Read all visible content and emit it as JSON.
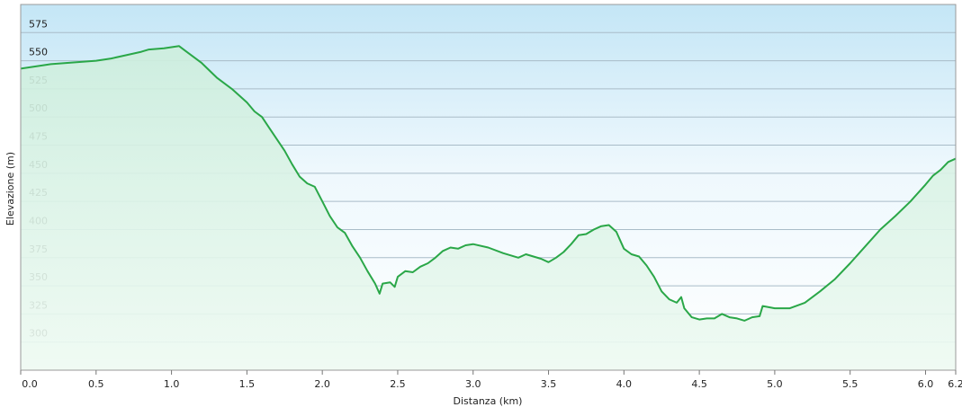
{
  "chart_data": {
    "type": "area",
    "x_label": "Distanza  (km)",
    "y_label": "Elevazione (m)",
    "x": [
      0.0,
      0.1,
      0.2,
      0.3,
      0.4,
      0.5,
      0.6,
      0.7,
      0.8,
      0.85,
      0.95,
      1.05,
      1.1,
      1.2,
      1.3,
      1.4,
      1.5,
      1.55,
      1.6,
      1.65,
      1.7,
      1.75,
      1.8,
      1.85,
      1.9,
      1.95,
      2.0,
      2.05,
      2.1,
      2.15,
      2.2,
      2.25,
      2.3,
      2.35,
      2.38,
      2.4,
      2.45,
      2.48,
      2.5,
      2.55,
      2.6,
      2.65,
      2.7,
      2.75,
      2.8,
      2.85,
      2.9,
      2.95,
      3.0,
      3.1,
      3.2,
      3.3,
      3.35,
      3.4,
      3.45,
      3.5,
      3.55,
      3.6,
      3.65,
      3.7,
      3.75,
      3.8,
      3.85,
      3.9,
      3.95,
      4.0,
      4.05,
      4.1,
      4.15,
      4.2,
      4.25,
      4.3,
      4.35,
      4.38,
      4.4,
      4.45,
      4.5,
      4.55,
      4.6,
      4.65,
      4.7,
      4.75,
      4.8,
      4.85,
      4.9,
      4.92,
      5.0,
      5.1,
      5.2,
      5.3,
      5.4,
      5.5,
      5.6,
      5.7,
      5.8,
      5.9,
      6.0,
      6.05,
      6.1,
      6.15,
      6.2
    ],
    "values": [
      543,
      545,
      547,
      548,
      549,
      550,
      552,
      555,
      558,
      560,
      561,
      563,
      558,
      548,
      535,
      525,
      513,
      505,
      500,
      490,
      480,
      470,
      458,
      447,
      441,
      438,
      425,
      412,
      402,
      397,
      385,
      375,
      363,
      352,
      343,
      352,
      353,
      349,
      358,
      363,
      362,
      367,
      370,
      375,
      381,
      384,
      383,
      386,
      387,
      384,
      379,
      375,
      378,
      376,
      374,
      371,
      375,
      380,
      387,
      395,
      396,
      400,
      403,
      404,
      398,
      383,
      378,
      376,
      368,
      358,
      345,
      338,
      335,
      340,
      330,
      322,
      320,
      321,
      321,
      325,
      322,
      321,
      319,
      322,
      323,
      332,
      330,
      330,
      335,
      345,
      356,
      370,
      385,
      400,
      412,
      425,
      440,
      448,
      453,
      460,
      463
    ],
    "color": "#2aa748",
    "xlim": [
      0,
      6.2
    ],
    "ylim": [
      275,
      600
    ],
    "xticks": [
      {
        "value": 0,
        "label": "0.0"
      },
      0.5,
      {
        "value": 1,
        "label": "1.0"
      },
      1.5,
      {
        "value": 2,
        "label": "2.0"
      },
      2.5,
      {
        "value": 3,
        "label": "3.0"
      },
      3.5,
      {
        "value": 4,
        "label": "4.0"
      },
      4.5,
      {
        "value": 5,
        "label": "5.0"
      },
      5.5,
      {
        "value": 6,
        "label": "6.0"
      },
      6.2
    ],
    "yticks": [
      300,
      325,
      350,
      375,
      400,
      425,
      450,
      475,
      500,
      525,
      550,
      575
    ],
    "grid": true
  }
}
